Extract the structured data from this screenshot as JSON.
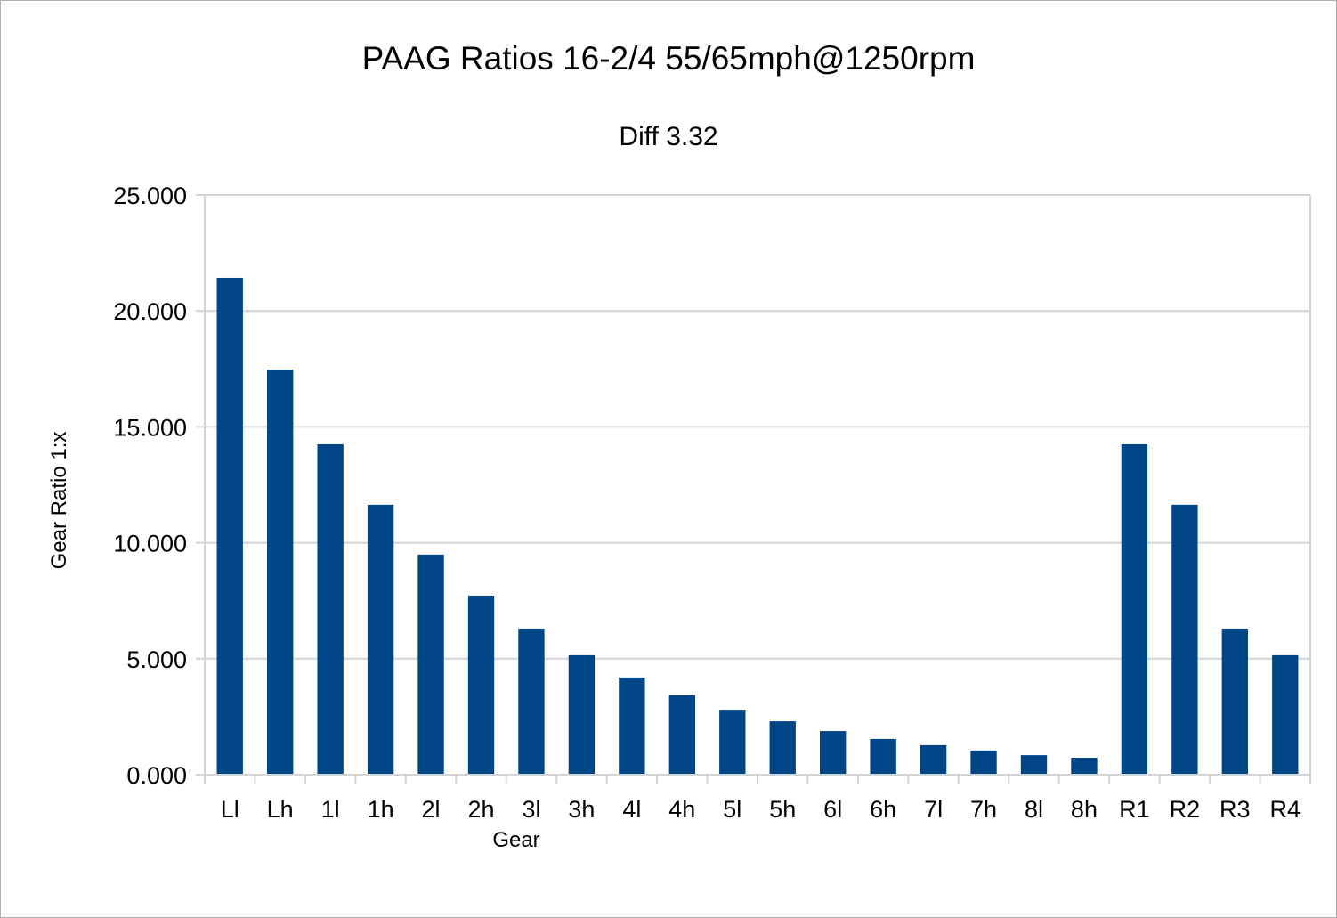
{
  "chart_data": {
    "type": "bar",
    "title": "PAAG Ratios 16-2/4 55/65mph@1250rpm",
    "subtitle": "Diff 3.32",
    "xlabel": "Gear",
    "ylabel": "Gear Ratio 1:x",
    "ylim": [
      0,
      25
    ],
    "yticks": [
      "0.000",
      "5.000",
      "10.000",
      "15.000",
      "20.000",
      "25.000"
    ],
    "grid": true,
    "legend": "none",
    "bar_color": "#004586",
    "categories": [
      "Ll",
      "Lh",
      "1l",
      "1h",
      "2l",
      "2h",
      "3l",
      "3h",
      "4l",
      "4h",
      "5l",
      "5h",
      "6l",
      "6h",
      "7l",
      "7h",
      "8l",
      "8h",
      "R1",
      "R2",
      "R3",
      "R4"
    ],
    "values": [
      21.43,
      17.47,
      14.25,
      11.64,
      9.49,
      7.72,
      6.3,
      5.15,
      4.19,
      3.42,
      2.8,
      2.3,
      1.88,
      1.54,
      1.27,
      1.04,
      0.84,
      0.73,
      14.25,
      11.64,
      6.3,
      5.15
    ]
  }
}
